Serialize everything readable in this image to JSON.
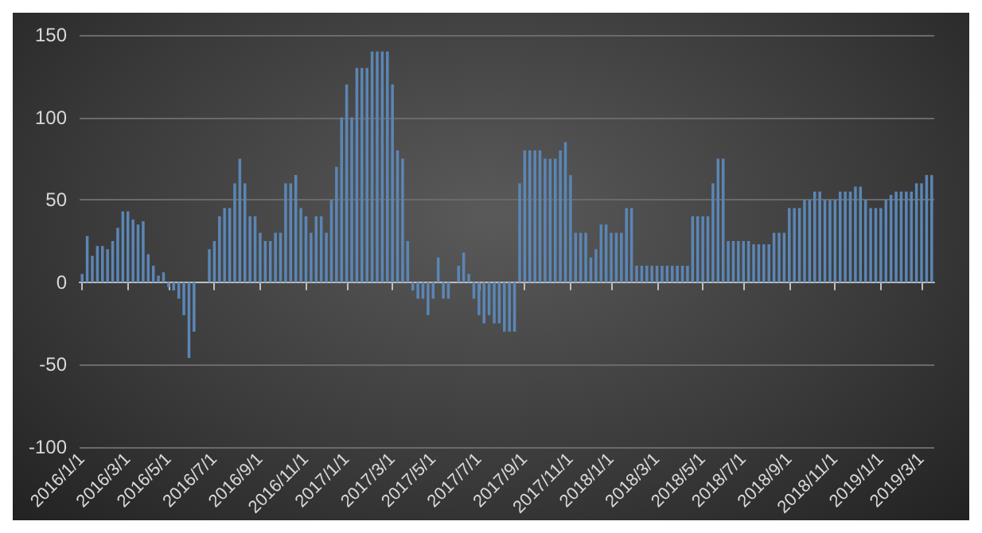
{
  "chart_data": {
    "type": "bar",
    "categories": [
      "2016/1/1",
      null,
      null,
      null,
      null,
      null,
      null,
      null,
      null,
      "2016/3/1",
      null,
      null,
      null,
      null,
      null,
      null,
      null,
      "2016/5/1",
      null,
      null,
      null,
      null,
      null,
      null,
      null,
      null,
      "2016/7/1",
      null,
      null,
      null,
      null,
      null,
      null,
      null,
      null,
      "2016/9/1",
      null,
      null,
      null,
      null,
      null,
      null,
      null,
      null,
      "2016/11/1",
      null,
      null,
      null,
      null,
      null,
      null,
      null,
      "2017/1/1",
      null,
      null,
      null,
      null,
      null,
      null,
      null,
      null,
      "2017/3/1",
      null,
      null,
      null,
      null,
      null,
      null,
      null,
      "2017/5/1",
      null,
      null,
      null,
      null,
      null,
      null,
      null,
      null,
      "2017/7/1",
      null,
      null,
      null,
      null,
      null,
      null,
      null,
      null,
      "2017/9/1",
      null,
      null,
      null,
      null,
      null,
      null,
      null,
      null,
      "2017/11/1",
      null,
      null,
      null,
      null,
      null,
      null,
      null,
      "2018/1/1",
      null,
      null,
      null,
      null,
      null,
      null,
      null,
      null,
      "2018/3/1",
      null,
      null,
      null,
      null,
      null,
      null,
      null,
      null,
      "2018/5/1",
      null,
      null,
      null,
      null,
      null,
      null,
      null,
      "2018/7/1",
      null,
      null,
      null,
      null,
      null,
      null,
      null,
      null,
      "2018/9/1",
      null,
      null,
      null,
      null,
      null,
      null,
      null,
      null,
      "2018/11/1",
      null,
      null,
      null,
      null,
      null,
      null,
      null,
      null,
      "2019/1/1",
      null,
      null,
      null,
      null,
      null,
      null,
      null,
      "2019/3/1",
      null,
      null
    ],
    "values": [
      5,
      28,
      16,
      22,
      22,
      20,
      25,
      33,
      43,
      43,
      38,
      35,
      37,
      17,
      10,
      4,
      6,
      -3,
      -5,
      -10,
      -20,
      -46,
      -30,
      0,
      0,
      20,
      25,
      40,
      45,
      45,
      60,
      75,
      60,
      40,
      40,
      30,
      25,
      25,
      30,
      30,
      60,
      60,
      65,
      45,
      40,
      30,
      40,
      40,
      30,
      50,
      70,
      100,
      120,
      100,
      130,
      130,
      130,
      140,
      140,
      140,
      140,
      120,
      80,
      75,
      25,
      -5,
      -10,
      -10,
      -20,
      -10,
      15,
      -10,
      -10,
      0,
      10,
      18,
      5,
      -10,
      -20,
      -25,
      -20,
      -25,
      -25,
      -30,
      -30,
      -30,
      60,
      80,
      80,
      80,
      80,
      75,
      75,
      75,
      80,
      85,
      65,
      30,
      30,
      30,
      15,
      20,
      35,
      35,
      30,
      30,
      30,
      45,
      45,
      10,
      10,
      10,
      10,
      10,
      10,
      10,
      10,
      10,
      10,
      10,
      40,
      40,
      40,
      40,
      60,
      75,
      75,
      25,
      25,
      25,
      25,
      25,
      23,
      23,
      23,
      23,
      30,
      30,
      30,
      45,
      45,
      45,
      50,
      50,
      55,
      55,
      50,
      50,
      50,
      55,
      55,
      55,
      58,
      58,
      50,
      45,
      45,
      45,
      50,
      53,
      55,
      55,
      55,
      55,
      60,
      60,
      65,
      65
    ],
    "color": "#5b86b5",
    "ylim": [
      -100,
      150
    ],
    "yticks": [
      -100,
      -50,
      0,
      50,
      100,
      150
    ],
    "grid": "y"
  }
}
